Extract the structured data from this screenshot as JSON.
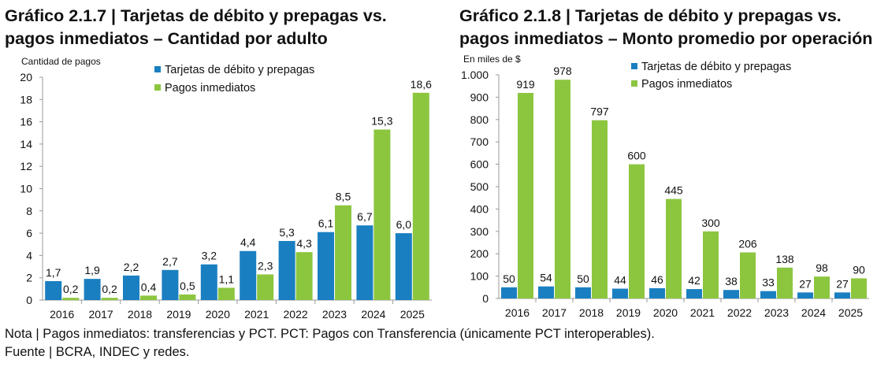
{
  "chart_data": [
    {
      "type": "bar",
      "title": "Gráfico 2.1.7 | Tarjetas de débito y prepagas vs. pagos inmediatos – Cantidad por adulto",
      "title_lines": [
        "Gráfico 2.1.7 | Tarjetas de débito y prepagas vs.",
        "pagos inmediatos – Cantidad por adulto"
      ],
      "ylabel": "Cantidad de pagos",
      "xlabel": "",
      "categories": [
        "2016",
        "2017",
        "2018",
        "2019",
        "2020",
        "2021",
        "2022",
        "2023",
        "2024",
        "2025"
      ],
      "series": [
        {
          "name": "Tarjetas de débito y prepagas",
          "color": "#1a7fc1",
          "values": [
            1.7,
            1.9,
            2.2,
            2.7,
            3.2,
            4.4,
            5.3,
            6.1,
            6.7,
            6.0
          ],
          "labels": [
            "1,7",
            "1,9",
            "2,2",
            "2,7",
            "3,2",
            "4,4",
            "5,3",
            "6,1",
            "6,7",
            "6,0"
          ]
        },
        {
          "name": "Pagos inmediatos",
          "color": "#8cc63f",
          "values": [
            0.2,
            0.2,
            0.4,
            0.5,
            1.1,
            2.3,
            4.3,
            8.5,
            15.3,
            18.6
          ],
          "labels": [
            "0,2",
            "0,2",
            "0,4",
            "0,5",
            "1,1",
            "2,3",
            "4,3",
            "8,5",
            "15,3",
            "18,6"
          ]
        }
      ],
      "ylim": [
        0,
        20
      ],
      "yticks": [
        0,
        2,
        4,
        6,
        8,
        10,
        12,
        14,
        16,
        18,
        20
      ],
      "ytick_labels": [
        "0",
        "2",
        "4",
        "6",
        "8",
        "10",
        "12",
        "14",
        "16",
        "18",
        "20"
      ],
      "grid": false,
      "legend": "top-center"
    },
    {
      "type": "bar",
      "title": "Gráfico 2.1.8 | Tarjetas de débito y prepagas vs. pagos inmediatos – Monto promedio por operación",
      "title_lines": [
        "Gráfico 2.1.8 | Tarjetas de débito y prepagas vs.",
        "pagos inmediatos – Monto promedio por operación"
      ],
      "ylabel": "En miles de $",
      "xlabel": "",
      "categories": [
        "2016",
        "2017",
        "2018",
        "2019",
        "2020",
        "2021",
        "2022",
        "2023",
        "2024",
        "2025"
      ],
      "series": [
        {
          "name": "Tarjetas de débito y prepagas",
          "color": "#1a7fc1",
          "values": [
            50,
            54,
            50,
            44,
            46,
            42,
            38,
            33,
            27,
            27
          ],
          "labels": [
            "50",
            "54",
            "50",
            "44",
            "46",
            "42",
            "38",
            "33",
            "27",
            "27"
          ]
        },
        {
          "name": "Pagos inmediatos",
          "color": "#8cc63f",
          "values": [
            919,
            978,
            797,
            600,
            445,
            300,
            206,
            138,
            98,
            90
          ],
          "labels": [
            "919",
            "978",
            "797",
            "600",
            "445",
            "300",
            "206",
            "138",
            "98",
            "90"
          ]
        }
      ],
      "ylim": [
        0,
        1000
      ],
      "yticks": [
        0,
        100,
        200,
        300,
        400,
        500,
        600,
        700,
        800,
        900,
        1000
      ],
      "ytick_labels": [
        "0",
        "100",
        "200",
        "300",
        "400",
        "500",
        "600",
        "700",
        "800",
        "900",
        "1.000"
      ],
      "grid": false,
      "legend": "top-center"
    }
  ],
  "footer": {
    "note": "Nota | Pagos inmediatos: transferencias y PCT. PCT: Pagos con Transferencia (únicamente PCT interoperables).",
    "source": "Fuente | BCRA, INDEC y redes."
  }
}
